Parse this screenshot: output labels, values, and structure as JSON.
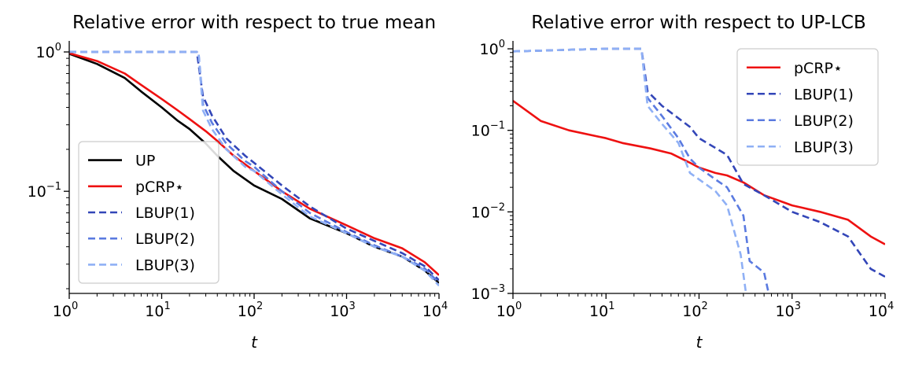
{
  "chart_data": [
    {
      "type": "line",
      "title": "Relative error with respect to true mean",
      "xlabel": "t",
      "ylabel": "",
      "xscale": "log",
      "yscale": "log",
      "xlim": [
        1,
        10000
      ],
      "ylim": [
        0.0185,
        1.2
      ],
      "x_ticks": [
        {
          "value": 1,
          "base": "10",
          "exp": "0"
        },
        {
          "value": 10,
          "base": "10",
          "exp": "1"
        },
        {
          "value": 100,
          "base": "10",
          "exp": "2"
        },
        {
          "value": 1000,
          "base": "10",
          "exp": "3"
        },
        {
          "value": 10000,
          "base": "10",
          "exp": "4"
        }
      ],
      "y_ticks": [
        {
          "value": 1,
          "base": "10",
          "exp": "0"
        },
        {
          "value": 0.1,
          "base": "10",
          "exp": "−1"
        }
      ],
      "grid": false,
      "legend_position": "lower-left",
      "series": [
        {
          "name": "UP",
          "color": "#000000",
          "dash": "solid",
          "points": [
            [
              1,
              0.97
            ],
            [
              2,
              0.82
            ],
            [
              4,
              0.65
            ],
            [
              6,
              0.52
            ],
            [
              10,
              0.4
            ],
            [
              15,
              0.32
            ],
            [
              20,
              0.28
            ],
            [
              30,
              0.22
            ],
            [
              40,
              0.18
            ],
            [
              60,
              0.14
            ],
            [
              100,
              0.11
            ],
            [
              200,
              0.088
            ],
            [
              400,
              0.064
            ],
            [
              1000,
              0.05
            ],
            [
              2000,
              0.04
            ],
            [
              4000,
              0.034
            ],
            [
              7000,
              0.027
            ],
            [
              10000,
              0.022
            ]
          ]
        },
        {
          "name": "pCRP⋆",
          "color": "#ee1111",
          "dash": "solid",
          "points": [
            [
              1,
              0.98
            ],
            [
              2,
              0.86
            ],
            [
              4,
              0.7
            ],
            [
              6,
              0.58
            ],
            [
              10,
              0.46
            ],
            [
              15,
              0.38
            ],
            [
              20,
              0.33
            ],
            [
              30,
              0.27
            ],
            [
              40,
              0.23
            ],
            [
              60,
              0.18
            ],
            [
              100,
              0.14
            ],
            [
              200,
              0.1
            ],
            [
              400,
              0.075
            ],
            [
              1000,
              0.057
            ],
            [
              2000,
              0.046
            ],
            [
              4000,
              0.039
            ],
            [
              7000,
              0.031
            ],
            [
              10000,
              0.025
            ]
          ]
        },
        {
          "name": "LBUP(1)",
          "color": "#3346b8",
          "dash": "dashed",
          "points": [
            [
              1,
              1.0
            ],
            [
              10,
              1.0
            ],
            [
              24,
              1.0
            ],
            [
              28,
              0.48
            ],
            [
              35,
              0.35
            ],
            [
              50,
              0.24
            ],
            [
              80,
              0.18
            ],
            [
              100,
              0.16
            ],
            [
              200,
              0.11
            ],
            [
              400,
              0.078
            ],
            [
              1000,
              0.054
            ],
            [
              2000,
              0.044
            ],
            [
              4000,
              0.036
            ],
            [
              7000,
              0.029
            ],
            [
              10000,
              0.023
            ]
          ]
        },
        {
          "name": "LBUP(2)",
          "color": "#5a7ae0",
          "dash": "dashed",
          "points": [
            [
              1,
              1.0
            ],
            [
              10,
              1.0
            ],
            [
              25,
              1.0
            ],
            [
              28,
              0.42
            ],
            [
              35,
              0.31
            ],
            [
              50,
              0.22
            ],
            [
              80,
              0.165
            ],
            [
              100,
              0.15
            ],
            [
              200,
              0.1
            ],
            [
              400,
              0.07
            ],
            [
              1000,
              0.051
            ],
            [
              2000,
              0.041
            ],
            [
              4000,
              0.034
            ],
            [
              7000,
              0.028
            ],
            [
              10000,
              0.022
            ]
          ]
        },
        {
          "name": "LBUP(3)",
          "color": "#8fb0f5",
          "dash": "dashed",
          "points": [
            [
              1,
              1.0
            ],
            [
              10,
              1.0
            ],
            [
              25,
              1.0
            ],
            [
              28,
              0.38
            ],
            [
              35,
              0.28
            ],
            [
              50,
              0.2
            ],
            [
              80,
              0.15
            ],
            [
              100,
              0.14
            ],
            [
              200,
              0.095
            ],
            [
              400,
              0.066
            ],
            [
              1000,
              0.05
            ],
            [
              2000,
              0.04
            ],
            [
              4000,
              0.034
            ],
            [
              7000,
              0.027
            ],
            [
              10000,
              0.021
            ]
          ]
        }
      ]
    },
    {
      "type": "line",
      "title": "Relative error with respect to UP-LCB",
      "xlabel": "t",
      "ylabel": "",
      "xscale": "log",
      "yscale": "log",
      "xlim": [
        1,
        10000
      ],
      "ylim": [
        0.001,
        1.25
      ],
      "x_ticks": [
        {
          "value": 1,
          "base": "10",
          "exp": "0"
        },
        {
          "value": 10,
          "base": "10",
          "exp": "1"
        },
        {
          "value": 100,
          "base": "10",
          "exp": "2"
        },
        {
          "value": 1000,
          "base": "10",
          "exp": "3"
        },
        {
          "value": 10000,
          "base": "10",
          "exp": "4"
        }
      ],
      "y_ticks": [
        {
          "value": 1,
          "base": "10",
          "exp": "0"
        },
        {
          "value": 0.1,
          "base": "10",
          "exp": "−1"
        },
        {
          "value": 0.01,
          "base": "10",
          "exp": "−2"
        },
        {
          "value": 0.001,
          "base": "10",
          "exp": "−3"
        }
      ],
      "grid": false,
      "legend_position": "upper-right",
      "series": [
        {
          "name": "pCRP⋆",
          "color": "#ee1111",
          "dash": "solid",
          "points": [
            [
              1,
              0.23
            ],
            [
              2,
              0.13
            ],
            [
              4,
              0.1
            ],
            [
              10,
              0.08
            ],
            [
              15,
              0.07
            ],
            [
              30,
              0.06
            ],
            [
              50,
              0.052
            ],
            [
              80,
              0.04
            ],
            [
              100,
              0.035
            ],
            [
              150,
              0.03
            ],
            [
              200,
              0.028
            ],
            [
              300,
              0.023
            ],
            [
              500,
              0.016
            ],
            [
              1000,
              0.012
            ],
            [
              2000,
              0.01
            ],
            [
              4000,
              0.008
            ],
            [
              7000,
              0.005
            ],
            [
              10000,
              0.004
            ]
          ]
        },
        {
          "name": "LBUP(1)",
          "color": "#3346b8",
          "dash": "dashed",
          "points": [
            [
              1,
              0.93
            ],
            [
              10,
              1.0
            ],
            [
              24,
              1.0
            ],
            [
              28,
              0.3
            ],
            [
              40,
              0.2
            ],
            [
              80,
              0.11
            ],
            [
              100,
              0.08
            ],
            [
              200,
              0.05
            ],
            [
              300,
              0.022
            ],
            [
              500,
              0.016
            ],
            [
              1000,
              0.01
            ],
            [
              2000,
              0.0075
            ],
            [
              4000,
              0.005
            ],
            [
              7000,
              0.002
            ],
            [
              10000,
              0.0016
            ]
          ]
        },
        {
          "name": "LBUP(2)",
          "color": "#5a7ae0",
          "dash": "dashed",
          "points": [
            [
              1,
              0.93
            ],
            [
              10,
              1.0
            ],
            [
              24,
              1.0
            ],
            [
              28,
              0.25
            ],
            [
              40,
              0.15
            ],
            [
              60,
              0.08
            ],
            [
              80,
              0.045
            ],
            [
              100,
              0.035
            ],
            [
              150,
              0.025
            ],
            [
              200,
              0.02
            ],
            [
              300,
              0.009
            ],
            [
              350,
              0.0025
            ],
            [
              500,
              0.0018
            ],
            [
              560,
              0.001
            ]
          ]
        },
        {
          "name": "LBUP(3)",
          "color": "#8fb0f5",
          "dash": "dashed",
          "points": [
            [
              1,
              0.93
            ],
            [
              10,
              1.0
            ],
            [
              24,
              1.0
            ],
            [
              28,
              0.2
            ],
            [
              40,
              0.12
            ],
            [
              60,
              0.07
            ],
            [
              80,
              0.03
            ],
            [
              100,
              0.025
            ],
            [
              150,
              0.018
            ],
            [
              200,
              0.012
            ],
            [
              280,
              0.003
            ],
            [
              320,
              0.001
            ]
          ]
        }
      ]
    }
  ]
}
